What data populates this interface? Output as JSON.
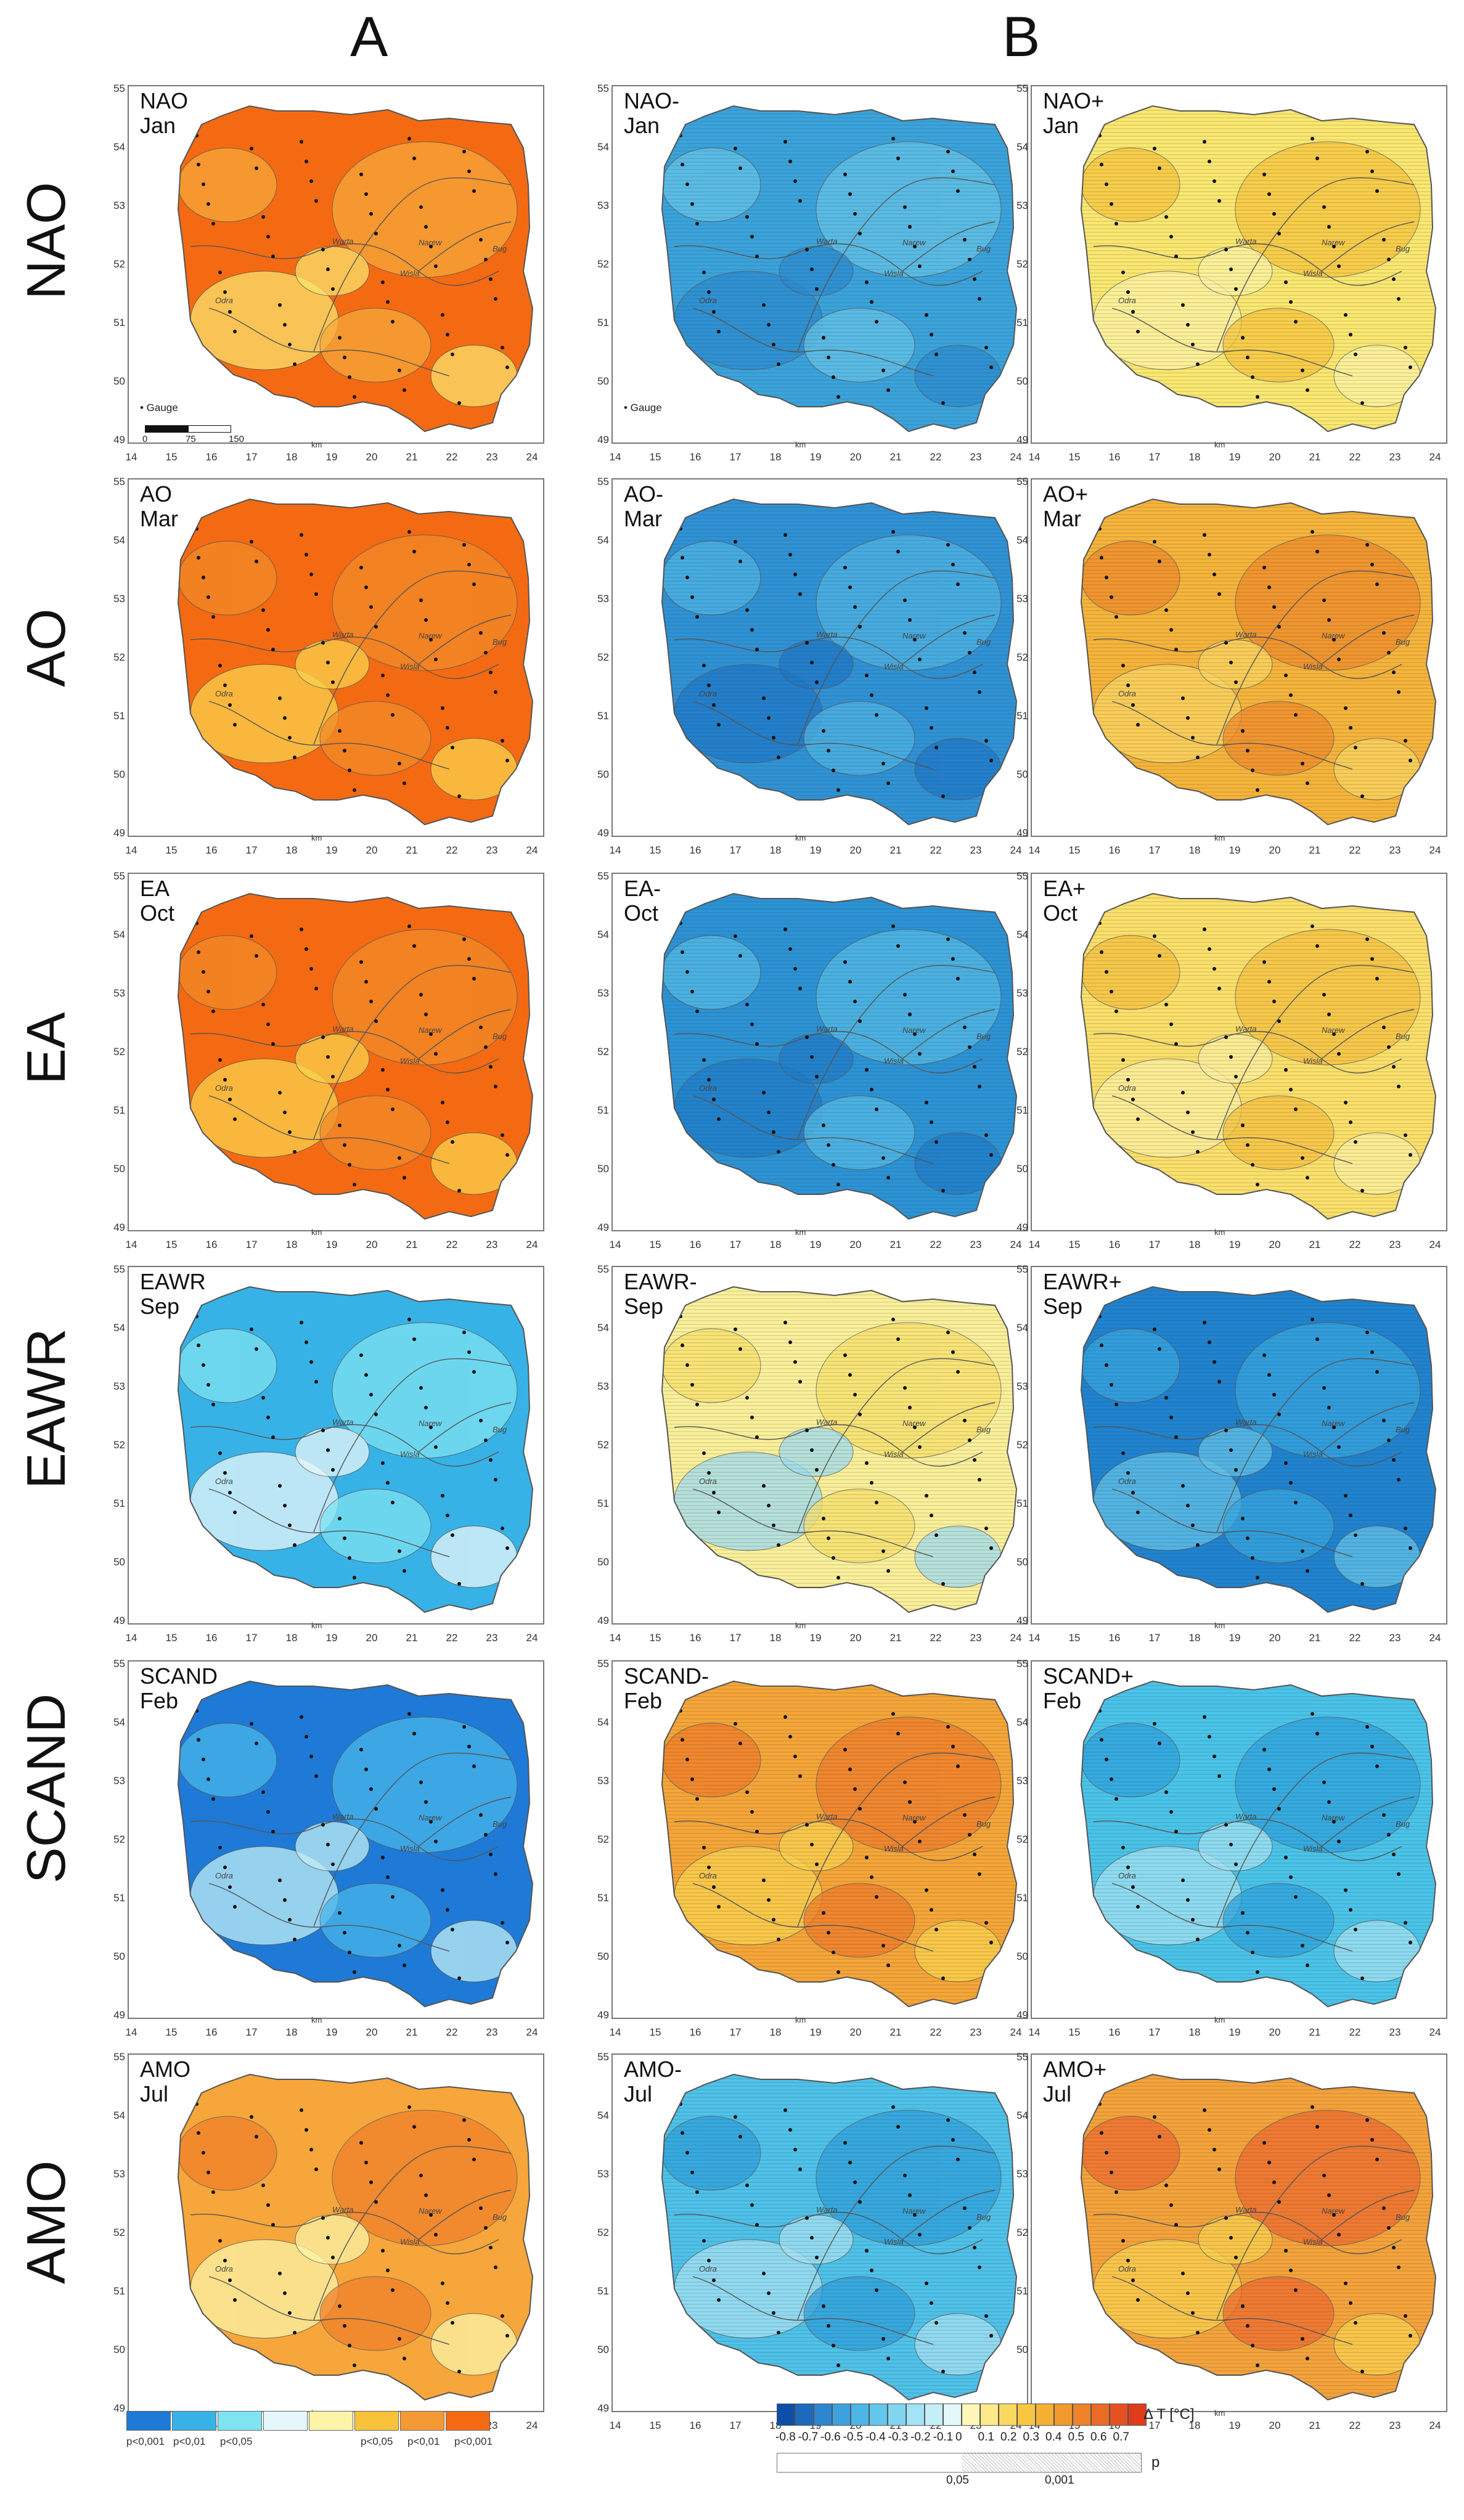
{
  "column_headers": [
    "A",
    "B"
  ],
  "row_labels": [
    "NAO",
    "AO",
    "EA",
    "EAWR",
    "SCAND",
    "AMO"
  ],
  "axes": {
    "y_ticks": [
      "55",
      "54",
      "53",
      "52",
      "51",
      "50",
      "49"
    ],
    "x_ticks": [
      "14",
      "15",
      "16",
      "17",
      "18",
      "19",
      "20",
      "21",
      "22",
      "23",
      "24"
    ],
    "x_unit": "km"
  },
  "gauge_key": "• Gauge",
  "scale_bar": [
    "0",
    "75",
    "150"
  ],
  "rivers": [
    "Warta",
    "Narew",
    "Odra",
    "Bug",
    "Wisla"
  ],
  "panels": [
    {
      "id": "nao-a",
      "title": [
        "NAO",
        "Jan"
      ],
      "fill": "#f46a12",
      "accent": "#f7a83a",
      "light": "#fbe36c"
    },
    {
      "id": "nao-minus",
      "title": [
        "NAO-",
        "Jan"
      ],
      "fill": "#3aa3dc",
      "accent": "#64c4e8",
      "light": "#2b8bd0"
    },
    {
      "id": "nao-plus",
      "title": [
        "NAO+",
        "Jan"
      ],
      "fill": "#fbe870",
      "accent": "#f7c43c",
      "light": "#fdf3a6"
    },
    {
      "id": "ao-a",
      "title": [
        "AO",
        "Mar"
      ],
      "fill": "#f46a12",
      "accent": "#f28a28",
      "light": "#fbd24c"
    },
    {
      "id": "ao-minus",
      "title": [
        "AO-",
        "Mar"
      ],
      "fill": "#2e92d6",
      "accent": "#4fb4e4",
      "light": "#1f78c8"
    },
    {
      "id": "ao-plus",
      "title": [
        "AO+",
        "Mar"
      ],
      "fill": "#f6b43a",
      "accent": "#f08b2a",
      "light": "#fbd663"
    },
    {
      "id": "ea-a",
      "title": [
        "EA",
        "Oct"
      ],
      "fill": "#f46a12",
      "accent": "#f28a28",
      "light": "#fbd24c"
    },
    {
      "id": "ea-minus",
      "title": [
        "EA-",
        "Oct"
      ],
      "fill": "#2b93d6",
      "accent": "#54bbe6",
      "light": "#1f7cc8"
    },
    {
      "id": "ea-plus",
      "title": [
        "EA+",
        "Oct"
      ],
      "fill": "#fbe06a",
      "accent": "#f6c13e",
      "light": "#fdf1a2"
    },
    {
      "id": "eawr-a",
      "title": [
        "EAWR",
        "Sep"
      ],
      "fill": "#37b2e6",
      "accent": "#7fe3f2",
      "light": "#e9f8fc"
    },
    {
      "id": "eawr-minus",
      "title": [
        "EAWR-",
        "Sep"
      ],
      "fill": "#fbf09a",
      "accent": "#f8e16a",
      "light": "#9fdcf0"
    },
    {
      "id": "eawr-plus",
      "title": [
        "EAWR+",
        "Sep"
      ],
      "fill": "#1f83d0",
      "accent": "#36a6e0",
      "light": "#64c4ea"
    },
    {
      "id": "scand-a",
      "title": [
        "SCAND",
        "Feb"
      ],
      "fill": "#1e7ad6",
      "accent": "#48b6ea",
      "light": "#bfeef7"
    },
    {
      "id": "scand-minus",
      "title": [
        "SCAND-",
        "Feb"
      ],
      "fill": "#f6a637",
      "accent": "#f07c2a",
      "light": "#fbd34f"
    },
    {
      "id": "scand-plus",
      "title": [
        "SCAND+",
        "Feb"
      ],
      "fill": "#49c4ea",
      "accent": "#2ea3dd",
      "light": "#a4e3f3"
    },
    {
      "id": "amo-a",
      "title": [
        "AMO",
        "Jul"
      ],
      "fill": "#f6a63a",
      "accent": "#f0802a",
      "light": "#fdf4a8"
    },
    {
      "id": "amo-minus",
      "title": [
        "AMO-",
        "Jul"
      ],
      "fill": "#4ec2ea",
      "accent": "#2ea0dc",
      "light": "#a7e2f3"
    },
    {
      "id": "amo-plus",
      "title": [
        "AMO+",
        "Jul"
      ],
      "fill": "#f5a33a",
      "accent": "#ef6c2e",
      "light": "#fbd24f"
    }
  ],
  "legend_a": {
    "colors": [
      "#1e7ad6",
      "#37b2e6",
      "#7fe3f2",
      "#e6f7fb",
      "#fdf4a8",
      "#f8c23a",
      "#f49a34",
      "#f46a12"
    ],
    "labels": [
      "p<0,001",
      "p<0,01",
      "p<0,05",
      "p<0,05",
      "p<0,01",
      "p<0,001"
    ]
  },
  "legend_b": {
    "title": "Δ T [°C]",
    "colors": [
      "#0d4fa8",
      "#1e69c0",
      "#2e86d0",
      "#3ea1de",
      "#4cb6e7",
      "#63c6ec",
      "#80d6f1",
      "#a2e3f5",
      "#c4eef8",
      "#e4f7fb",
      "#fff6b8",
      "#fde98a",
      "#fbd85f",
      "#f8c642",
      "#f5b034",
      "#f29a2d",
      "#ef8329",
      "#eb6b25",
      "#e65121",
      "#de3b1d"
    ],
    "labels": [
      "-0.8",
      "-0.7",
      "-0.6",
      "-0.5",
      "-0.4",
      "-0.3",
      "-0.2",
      "-0.1",
      "0",
      "0.1",
      "0.2",
      "0.3",
      "0.4",
      "0.5",
      "0.6",
      "0.7"
    ],
    "p_title": "p",
    "p_labels": [
      "0,05",
      "0,001"
    ]
  }
}
